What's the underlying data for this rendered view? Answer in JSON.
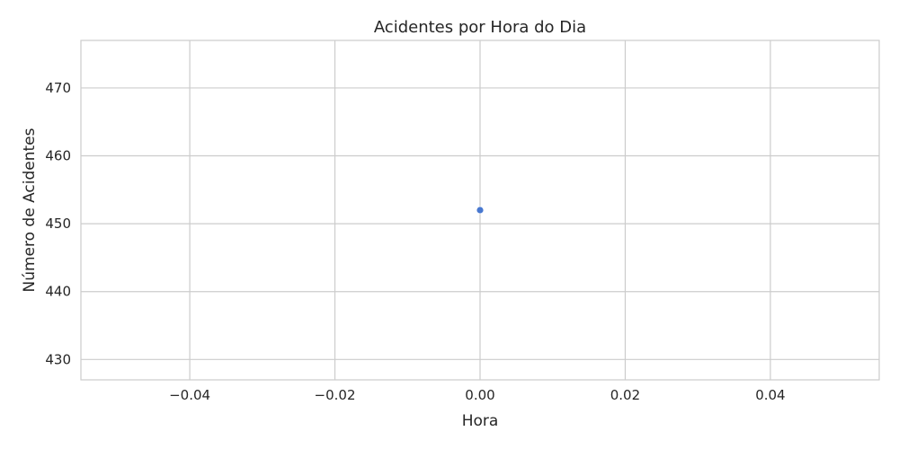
{
  "chart_data": {
    "type": "scatter",
    "title": "Acidentes por Hora do Dia",
    "xlabel": "Hora",
    "ylabel": "Número de Acidentes",
    "xlim": [
      -0.055,
      0.055
    ],
    "ylim": [
      427,
      477
    ],
    "xticks": [
      -0.04,
      -0.02,
      0.0,
      0.02,
      0.04
    ],
    "xtick_labels": [
      "−0.04",
      "−0.02",
      "0.00",
      "0.02",
      "0.04"
    ],
    "yticks": [
      430,
      440,
      450,
      460,
      470
    ],
    "ytick_labels": [
      "430",
      "440",
      "450",
      "460",
      "470"
    ],
    "grid": true,
    "series": [
      {
        "color": "#4878d0",
        "points": [
          {
            "x": 0,
            "y": 452
          }
        ]
      }
    ]
  }
}
